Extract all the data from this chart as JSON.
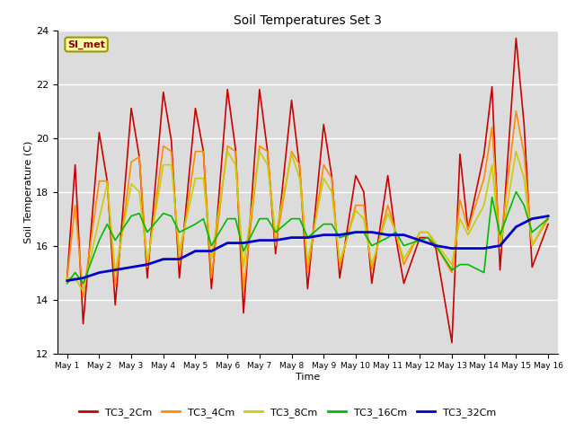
{
  "title": "Soil Temperatures Set 3",
  "xlabel": "Time",
  "ylabel": "Soil Temperature (C)",
  "ylim": [
    12,
    24
  ],
  "yticks": [
    12,
    14,
    16,
    18,
    20,
    22,
    24
  ],
  "plot_bg_color": "#dcdcdc",
  "annotation": "SI_met",
  "x_labels": [
    "May 1",
    "May 2",
    "May 3",
    "May 4",
    "May 5",
    "May 6",
    "May 7",
    "May 8",
    "May 9",
    "May 10",
    "May 11",
    "May 12",
    "May 13",
    "May 14",
    "May 15",
    "May 16"
  ],
  "series": {
    "TC3_2Cm": {
      "color": "#cc0000",
      "lw": 1.2,
      "x": [
        0,
        0.25,
        0.5,
        1.0,
        1.25,
        1.5,
        2.0,
        2.25,
        2.5,
        3.0,
        3.25,
        3.5,
        4.0,
        4.25,
        4.5,
        5.0,
        5.25,
        5.5,
        6.0,
        6.25,
        6.5,
        7.0,
        7.25,
        7.5,
        8.0,
        8.25,
        8.5,
        9.0,
        9.25,
        9.5,
        10.0,
        10.25,
        10.5,
        11.0,
        11.25,
        11.5,
        12.0,
        12.25,
        12.5,
        13.0,
        13.25,
        13.5,
        14.0,
        14.25,
        14.5,
        15.0
      ],
      "y": [
        14.8,
        19.0,
        13.1,
        20.2,
        18.4,
        13.8,
        21.1,
        19.3,
        14.8,
        21.7,
        19.9,
        14.8,
        21.1,
        19.5,
        14.4,
        21.8,
        19.6,
        13.5,
        21.8,
        19.5,
        15.7,
        21.4,
        18.9,
        14.4,
        20.5,
        18.6,
        14.8,
        18.6,
        18.0,
        14.6,
        18.6,
        16.3,
        14.6,
        16.3,
        16.3,
        15.9,
        12.4,
        19.4,
        16.6,
        19.4,
        21.9,
        15.1,
        23.7,
        20.5,
        15.2,
        16.8
      ]
    },
    "TC3_4Cm": {
      "color": "#ff8c00",
      "lw": 1.2,
      "x": [
        0,
        0.25,
        0.5,
        1.0,
        1.25,
        1.5,
        2.0,
        2.25,
        2.5,
        3.0,
        3.25,
        3.5,
        4.0,
        4.25,
        4.5,
        5.0,
        5.25,
        5.5,
        6.0,
        6.25,
        6.5,
        7.0,
        7.25,
        7.5,
        8.0,
        8.25,
        8.5,
        9.0,
        9.25,
        9.5,
        10.0,
        10.25,
        10.5,
        11.0,
        11.25,
        11.5,
        12.0,
        12.25,
        12.5,
        13.0,
        13.25,
        13.5,
        14.0,
        14.25,
        14.5,
        15.0
      ],
      "y": [
        14.8,
        17.5,
        14.1,
        18.4,
        18.4,
        14.5,
        19.1,
        19.3,
        15.2,
        19.7,
        19.5,
        15.3,
        19.5,
        19.5,
        14.8,
        19.7,
        19.5,
        14.3,
        19.7,
        19.5,
        16.0,
        19.5,
        19.0,
        15.0,
        19.0,
        18.5,
        15.2,
        17.5,
        17.5,
        15.1,
        17.5,
        16.5,
        15.3,
        16.5,
        16.5,
        16.0,
        15.0,
        17.7,
        16.6,
        18.5,
        20.4,
        16.0,
        21.0,
        19.4,
        16.0,
        17.0
      ]
    },
    "TC3_8Cm": {
      "color": "#cccc00",
      "lw": 1.2,
      "x": [
        0,
        0.25,
        0.5,
        1.0,
        1.25,
        1.5,
        2.0,
        2.25,
        2.5,
        3.0,
        3.25,
        3.5,
        4.0,
        4.25,
        4.5,
        5.0,
        5.25,
        5.5,
        6.0,
        6.25,
        6.5,
        7.0,
        7.25,
        7.5,
        8.0,
        8.25,
        8.5,
        9.0,
        9.25,
        9.5,
        10.0,
        10.25,
        10.5,
        11.0,
        11.25,
        11.5,
        12.0,
        12.25,
        12.5,
        13.0,
        13.25,
        13.5,
        14.0,
        14.25,
        14.5,
        15.0
      ],
      "y": [
        14.8,
        14.8,
        14.3,
        17.0,
        18.3,
        15.0,
        18.3,
        18.0,
        15.4,
        19.0,
        19.0,
        15.8,
        18.5,
        18.5,
        15.5,
        19.5,
        19.0,
        15.2,
        19.5,
        19.0,
        16.4,
        19.4,
        18.5,
        15.4,
        18.5,
        18.0,
        15.4,
        17.3,
        17.0,
        15.3,
        17.2,
        16.5,
        15.5,
        16.5,
        16.5,
        16.1,
        15.3,
        17.0,
        16.4,
        17.5,
        19.0,
        15.9,
        19.5,
        18.5,
        16.0,
        17.1
      ]
    },
    "TC3_16Cm": {
      "color": "#00bb00",
      "lw": 1.2,
      "x": [
        0,
        0.25,
        0.5,
        1.0,
        1.25,
        1.5,
        2.0,
        2.25,
        2.5,
        3.0,
        3.25,
        3.5,
        4.0,
        4.25,
        4.5,
        5.0,
        5.25,
        5.5,
        6.0,
        6.25,
        6.5,
        7.0,
        7.25,
        7.5,
        8.0,
        8.25,
        8.5,
        9.0,
        9.25,
        9.5,
        10.0,
        10.25,
        10.5,
        11.0,
        11.25,
        11.5,
        12.0,
        12.25,
        12.5,
        13.0,
        13.25,
        13.5,
        14.0,
        14.25,
        14.5,
        15.0
      ],
      "y": [
        14.6,
        15.0,
        14.6,
        16.2,
        16.8,
        16.2,
        17.1,
        17.2,
        16.5,
        17.2,
        17.1,
        16.5,
        16.8,
        17.0,
        16.0,
        17.0,
        17.0,
        15.8,
        17.0,
        17.0,
        16.5,
        17.0,
        17.0,
        16.3,
        16.8,
        16.8,
        16.3,
        16.5,
        16.5,
        16.0,
        16.3,
        16.5,
        16.0,
        16.2,
        16.3,
        16.0,
        15.1,
        15.3,
        15.3,
        15.0,
        17.8,
        16.4,
        18.0,
        17.5,
        16.5,
        17.0
      ]
    },
    "TC3_32Cm": {
      "color": "#0000cc",
      "lw": 2.0,
      "x": [
        0,
        0.5,
        1.0,
        1.5,
        2.0,
        2.5,
        3.0,
        3.5,
        4.0,
        4.5,
        5.0,
        5.5,
        6.0,
        6.5,
        7.0,
        7.5,
        8.0,
        8.5,
        9.0,
        9.5,
        10.0,
        10.5,
        11.0,
        11.5,
        12.0,
        12.5,
        13.0,
        13.5,
        14.0,
        14.5,
        15.0
      ],
      "y": [
        14.7,
        14.8,
        15.0,
        15.1,
        15.2,
        15.3,
        15.5,
        15.5,
        15.8,
        15.8,
        16.1,
        16.1,
        16.2,
        16.2,
        16.3,
        16.3,
        16.4,
        16.4,
        16.5,
        16.5,
        16.4,
        16.4,
        16.2,
        16.0,
        15.9,
        15.9,
        15.9,
        16.0,
        16.7,
        17.0,
        17.1
      ]
    }
  },
  "legend": [
    {
      "label": "TC3_2Cm",
      "color": "#cc0000"
    },
    {
      "label": "TC3_4Cm",
      "color": "#ff8c00"
    },
    {
      "label": "TC3_8Cm",
      "color": "#cccc00"
    },
    {
      "label": "TC3_16Cm",
      "color": "#00bb00"
    },
    {
      "label": "TC3_32Cm",
      "color": "#0000cc"
    }
  ]
}
